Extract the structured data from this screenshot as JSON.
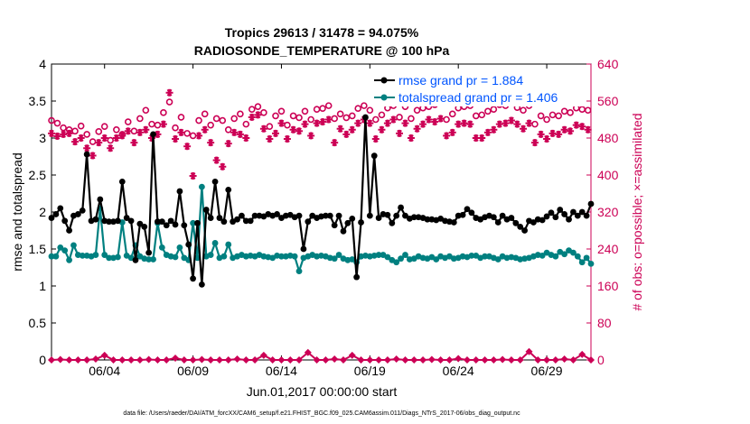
{
  "chart_data": {
    "type": "line",
    "title_line1": "Tropics 29613 / 31478 = 94.075%",
    "title_line2": "RADIOSONDE_TEMPERATURE @ 100 hPa",
    "xlabel": "Jun.01,2017 00:00:00 start",
    "ylabel_left": "rmse and totalspread",
    "ylabel_right": "# of obs: o=possible; ×=assimilated",
    "footer": "data file: /Users/raeder/DAI/ATM_forcXX/CAM6_setup/f.e21.FHIST_BGC.f09_025.CAM6assim.011/Diags_NTrS_2017-06/obs_diag_output.nc",
    "x_range": [
      0.0,
      30.5
    ],
    "x_ticks": [
      3,
      8,
      13,
      18,
      23,
      28
    ],
    "x_tick_labels": [
      "06/04",
      "06/09",
      "06/14",
      "06/19",
      "06/24",
      "06/29"
    ],
    "y_left_range": [
      0,
      4
    ],
    "y_left_ticks": [
      0,
      0.5,
      1,
      1.5,
      2,
      2.5,
      3,
      3.5,
      4
    ],
    "y_left_tick_labels": [
      "0",
      "0.5",
      "1",
      "1.5",
      "2",
      "2.5",
      "3",
      "3.5",
      "4"
    ],
    "y_right_range": [
      0,
      640
    ],
    "y_right_ticks": [
      0,
      80,
      160,
      240,
      320,
      400,
      480,
      560,
      640
    ],
    "y_right_tick_labels": [
      "0",
      "80",
      "160",
      "240",
      "320",
      "400",
      "480",
      "560",
      "640"
    ],
    "colors": {
      "rmse": "#000000",
      "spread": "#008080",
      "obs": "#cc0055",
      "legend_text": "#0055ff",
      "right_axis": "#cc0055"
    },
    "legend_position": "top-right",
    "series": [
      {
        "name": "rmse grand pr = 1.884",
        "axis": "left",
        "x": [
          0.0,
          0.25,
          0.5,
          0.75,
          1.0,
          1.25,
          1.5,
          1.75,
          2.0,
          2.25,
          2.5,
          2.75,
          3.0,
          3.25,
          3.5,
          3.75,
          4.0,
          4.25,
          4.5,
          4.75,
          5.0,
          5.25,
          5.5,
          5.75,
          6.0,
          6.25,
          6.5,
          6.75,
          7.0,
          7.25,
          7.5,
          7.75,
          8.0,
          8.25,
          8.5,
          8.75,
          9.0,
          9.25,
          9.5,
          9.75,
          10.0,
          10.25,
          10.5,
          10.75,
          11.0,
          11.25,
          11.5,
          11.75,
          12.0,
          12.25,
          12.5,
          12.75,
          13.0,
          13.25,
          13.5,
          13.75,
          14.0,
          14.25,
          14.5,
          14.75,
          15.0,
          15.25,
          15.5,
          15.75,
          16.0,
          16.25,
          16.5,
          16.75,
          17.0,
          17.25,
          17.5,
          17.75,
          18.0,
          18.25,
          18.5,
          18.75,
          19.0,
          19.25,
          19.5,
          19.75,
          20.0,
          20.25,
          20.5,
          20.75,
          21.0,
          21.25,
          21.5,
          21.75,
          22.0,
          22.25,
          22.5,
          22.75,
          23.0,
          23.25,
          23.5,
          23.75,
          24.0,
          24.25,
          24.5,
          24.75,
          25.0,
          25.25,
          25.5,
          25.75,
          26.0,
          26.25,
          26.5,
          26.75,
          27.0,
          27.25,
          27.5,
          27.75,
          28.0,
          28.25,
          28.5,
          28.75,
          29.0,
          29.25,
          29.5,
          29.75,
          30.0,
          30.25,
          30.5
        ],
        "y": [
          1.92,
          1.97,
          2.05,
          1.88,
          1.75,
          1.95,
          1.97,
          2.02,
          2.78,
          1.88,
          1.9,
          2.17,
          1.88,
          1.87,
          1.87,
          1.88,
          2.41,
          1.92,
          1.88,
          1.35,
          1.84,
          1.8,
          1.45,
          3.05,
          1.87,
          1.87,
          1.82,
          1.88,
          1.83,
          2.28,
          1.82,
          1.56,
          1.1,
          1.85,
          1.02,
          2.03,
          1.92,
          2.41,
          1.92,
          1.87,
          2.3,
          1.87,
          1.9,
          1.95,
          1.88,
          1.88,
          1.95,
          1.95,
          1.94,
          1.97,
          1.95,
          1.97,
          1.92,
          1.95,
          1.96,
          1.93,
          1.95,
          1.5,
          1.87,
          1.95,
          1.92,
          1.94,
          1.95,
          1.95,
          1.82,
          1.95,
          1.74,
          1.85,
          1.91,
          1.12,
          1.86,
          3.28,
          1.95,
          2.76,
          1.92,
          1.97,
          1.96,
          1.85,
          1.95,
          2.06,
          1.95,
          1.91,
          1.93,
          1.93,
          1.92,
          1.9,
          1.9,
          1.89,
          1.91,
          1.88,
          1.87,
          1.86,
          1.95,
          1.96,
          2.04,
          1.99,
          1.92,
          1.9,
          1.93,
          1.95,
          1.93,
          1.86,
          1.95,
          1.9,
          1.92,
          1.85,
          1.8,
          1.75,
          1.88,
          1.86,
          1.9,
          1.89,
          1.94,
          1.99,
          1.93,
          2.03,
          1.97,
          1.9,
          2.0,
          1.95,
          2.0,
          1.95,
          2.11
        ]
      },
      {
        "name": "totalspread grand pr = 1.406",
        "axis": "left",
        "x": [
          0.0,
          0.25,
          0.5,
          0.75,
          1.0,
          1.25,
          1.5,
          1.75,
          2.0,
          2.25,
          2.5,
          2.75,
          3.0,
          3.25,
          3.5,
          3.75,
          4.0,
          4.25,
          4.5,
          4.75,
          5.0,
          5.25,
          5.5,
          5.75,
          6.0,
          6.25,
          6.5,
          6.75,
          7.0,
          7.25,
          7.5,
          7.75,
          8.0,
          8.25,
          8.5,
          8.75,
          9.0,
          9.25,
          9.5,
          9.75,
          10.0,
          10.25,
          10.5,
          10.75,
          11.0,
          11.25,
          11.5,
          11.75,
          12.0,
          12.25,
          12.5,
          12.75,
          13.0,
          13.25,
          13.5,
          13.75,
          14.0,
          14.25,
          14.5,
          14.75,
          15.0,
          15.25,
          15.5,
          15.75,
          16.0,
          16.25,
          16.5,
          16.75,
          17.0,
          17.25,
          17.5,
          17.75,
          18.0,
          18.25,
          18.5,
          18.75,
          19.0,
          19.25,
          19.5,
          19.75,
          20.0,
          20.25,
          20.5,
          20.75,
          21.0,
          21.25,
          21.5,
          21.75,
          22.0,
          22.25,
          22.5,
          22.75,
          23.0,
          23.25,
          23.5,
          23.75,
          24.0,
          24.25,
          24.5,
          24.75,
          25.0,
          25.25,
          25.5,
          25.75,
          26.0,
          26.25,
          26.5,
          26.75,
          27.0,
          27.25,
          27.5,
          27.75,
          28.0,
          28.25,
          28.5,
          28.75,
          29.0,
          29.25,
          29.5,
          29.75,
          30.0,
          30.25,
          30.5
        ],
        "y": [
          1.4,
          1.4,
          1.52,
          1.48,
          1.35,
          1.55,
          1.42,
          1.41,
          1.41,
          1.4,
          1.42,
          2.05,
          1.42,
          1.38,
          1.38,
          1.39,
          1.86,
          1.41,
          1.38,
          1.55,
          1.4,
          1.37,
          1.36,
          1.36,
          1.85,
          1.52,
          1.42,
          1.4,
          1.39,
          1.52,
          1.38,
          1.35,
          1.85,
          1.38,
          2.34,
          1.4,
          1.42,
          1.58,
          1.38,
          1.4,
          1.56,
          1.38,
          1.4,
          1.42,
          1.4,
          1.41,
          1.4,
          1.42,
          1.4,
          1.39,
          1.38,
          1.41,
          1.4,
          1.4,
          1.41,
          1.4,
          1.2,
          1.38,
          1.4,
          1.42,
          1.4,
          1.41,
          1.4,
          1.38,
          1.37,
          1.42,
          1.37,
          1.35,
          1.36,
          1.32,
          1.4,
          1.41,
          1.4,
          1.41,
          1.42,
          1.42,
          1.39,
          1.35,
          1.32,
          1.37,
          1.42,
          1.36,
          1.37,
          1.4,
          1.38,
          1.37,
          1.39,
          1.36,
          1.4,
          1.38,
          1.4,
          1.37,
          1.38,
          1.4,
          1.39,
          1.41,
          1.41,
          1.38,
          1.4,
          1.4,
          1.38,
          1.36,
          1.4,
          1.38,
          1.39,
          1.38,
          1.36,
          1.37,
          1.38,
          1.4,
          1.42,
          1.41,
          1.45,
          1.42,
          1.4,
          1.46,
          1.43,
          1.48,
          1.45,
          1.4,
          1.32,
          1.38,
          1.3
        ]
      },
      {
        "name": "obs possible",
        "axis": "right",
        "marker": "o",
        "x": [
          0.0,
          0.33,
          0.67,
          1.0,
          1.33,
          1.67,
          2.0,
          2.33,
          2.67,
          3.0,
          3.33,
          3.67,
          4.0,
          4.33,
          4.67,
          5.0,
          5.33,
          5.67,
          6.0,
          6.33,
          6.67,
          7.0,
          7.33,
          7.67,
          8.0,
          8.33,
          8.67,
          9.0,
          9.33,
          9.67,
          10.0,
          10.33,
          10.67,
          11.0,
          11.33,
          11.67,
          12.0,
          12.33,
          12.67,
          13.0,
          13.33,
          13.67,
          14.0,
          14.33,
          14.67,
          15.0,
          15.33,
          15.67,
          16.0,
          16.33,
          16.67,
          17.0,
          17.33,
          17.67,
          18.0,
          18.33,
          18.67,
          19.0,
          19.33,
          19.67,
          20.0,
          20.33,
          20.67,
          21.0,
          21.33,
          21.67,
          22.0,
          22.33,
          22.67,
          23.0,
          23.33,
          23.67,
          24.0,
          24.33,
          24.67,
          25.0,
          25.33,
          25.67,
          26.0,
          26.33,
          26.67,
          27.0,
          27.33,
          27.67,
          28.0,
          28.33,
          28.67,
          29.0,
          29.33,
          29.67,
          30.0,
          30.33
        ],
        "y": [
          518,
          512,
          502,
          498,
          495,
          506,
          488,
          472,
          494,
          505,
          475,
          498,
          488,
          515,
          495,
          522,
          540,
          510,
          508,
          535,
          558,
          502,
          525,
          490,
          485,
          518,
          532,
          508,
          522,
          518,
          498,
          522,
          532,
          510,
          542,
          548,
          535,
          505,
          528,
          538,
          508,
          528,
          524,
          538,
          520,
          542,
          544,
          550,
          522,
          532,
          524,
          528,
          544,
          550,
          540,
          520,
          530,
          545,
          550,
          525,
          548,
          522,
          540,
          545,
          548,
          552,
          558,
          520,
          532,
          545,
          548,
          550,
          528,
          530,
          538,
          542,
          552,
          550,
          558,
          546,
          540,
          550,
          510,
          528,
          520,
          530,
          528,
          538,
          535,
          545,
          542,
          540
        ]
      },
      {
        "name": "obs assimilated",
        "axis": "right",
        "marker": "star",
        "x": [
          0.0,
          0.33,
          0.67,
          1.0,
          1.33,
          1.67,
          2.0,
          2.33,
          2.67,
          3.0,
          3.33,
          3.67,
          4.0,
          4.33,
          4.67,
          5.0,
          5.33,
          5.67,
          6.0,
          6.33,
          6.67,
          7.0,
          7.33,
          7.67,
          8.0,
          8.33,
          8.67,
          9.0,
          9.33,
          9.67,
          10.0,
          10.33,
          10.67,
          11.0,
          11.33,
          11.67,
          12.0,
          12.33,
          12.67,
          13.0,
          13.33,
          13.67,
          14.0,
          14.33,
          14.67,
          15.0,
          15.33,
          15.67,
          16.0,
          16.33,
          16.67,
          17.0,
          17.33,
          17.67,
          18.0,
          18.33,
          18.67,
          19.0,
          19.33,
          19.67,
          20.0,
          20.33,
          20.67,
          21.0,
          21.33,
          21.67,
          22.0,
          22.33,
          22.67,
          23.0,
          23.33,
          23.67,
          24.0,
          24.33,
          24.67,
          25.0,
          25.33,
          25.67,
          26.0,
          26.33,
          26.67,
          27.0,
          27.33,
          27.67,
          28.0,
          28.33,
          28.67,
          29.0,
          29.33,
          29.67,
          30.0,
          30.33
        ],
        "y": [
          490,
          484,
          488,
          490,
          472,
          480,
          458,
          442,
          470,
          480,
          458,
          480,
          485,
          495,
          470,
          492,
          498,
          480,
          488,
          510,
          578,
          478,
          492,
          462,
          398,
          485,
          498,
          470,
          432,
          418,
          468,
          492,
          488,
          480,
          525,
          530,
          500,
          478,
          490,
          512,
          478,
          498,
          495,
          510,
          485,
          512,
          515,
          520,
          470,
          500,
          488,
          498,
          512,
          520,
          512,
          478,
          498,
          512,
          520,
          490,
          512,
          480,
          500,
          510,
          520,
          515,
          522,
          485,
          492,
          510,
          512,
          510,
          480,
          480,
          492,
          498,
          510,
          512,
          518,
          510,
          500,
          512,
          470,
          488,
          478,
          490,
          488,
          498,
          495,
          508,
          505,
          498
        ]
      },
      {
        "name": "obs near zero",
        "axis": "right",
        "x": [
          0.0,
          0.5,
          1.0,
          1.5,
          2.0,
          2.5,
          3.0,
          3.5,
          4.0,
          4.5,
          5.0,
          5.5,
          6.0,
          6.5,
          7.0,
          7.5,
          8.0,
          8.5,
          9.0,
          9.5,
          10.0,
          10.5,
          11.0,
          11.5,
          12.0,
          12.5,
          13.0,
          13.5,
          14.0,
          14.5,
          15.0,
          15.5,
          16.0,
          16.5,
          17.0,
          17.5,
          18.0,
          18.5,
          19.0,
          19.5,
          20.0,
          20.5,
          21.0,
          21.5,
          22.0,
          22.5,
          23.0,
          23.5,
          24.0,
          24.5,
          25.0,
          25.5,
          26.0,
          26.5,
          27.0,
          27.5,
          28.0,
          28.5,
          29.0,
          29.5,
          30.0,
          30.5
        ],
        "y": [
          0,
          1,
          0,
          0,
          0,
          2,
          10,
          0,
          0,
          0,
          0,
          1,
          0,
          0,
          4,
          0,
          0,
          1,
          0,
          0,
          0,
          2,
          0,
          0,
          10,
          0,
          0,
          0,
          0,
          16,
          0,
          0,
          2,
          0,
          10,
          0,
          0,
          0,
          0,
          2,
          0,
          0,
          0,
          1,
          0,
          0,
          3,
          0,
          0,
          0,
          0,
          1,
          0,
          0,
          18,
          0,
          0,
          0,
          2,
          0,
          12,
          0
        ]
      }
    ]
  }
}
